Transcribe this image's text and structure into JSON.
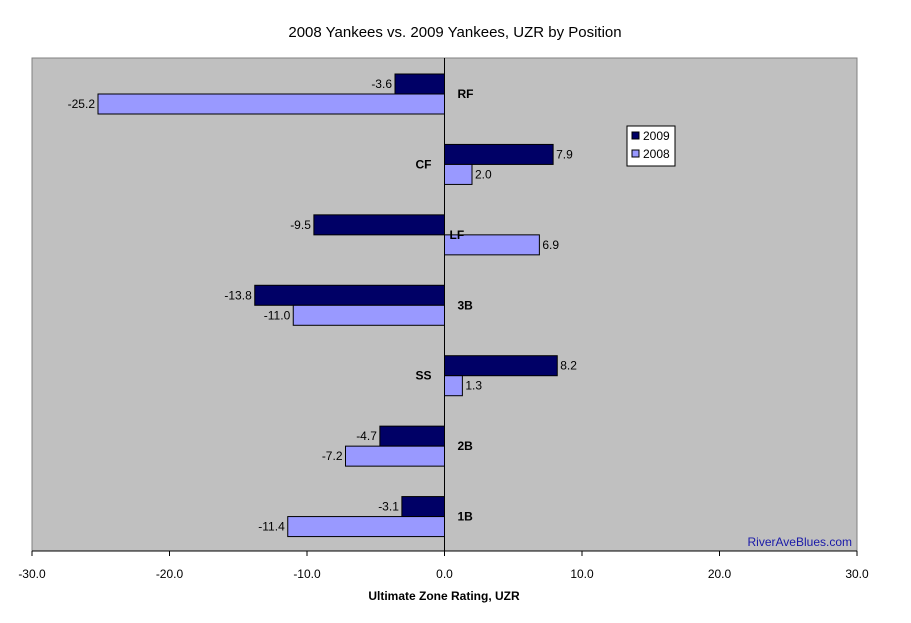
{
  "chart_data": {
    "type": "bar",
    "orientation": "horizontal",
    "title": "2008 Yankees vs. 2009 Yankees, UZR by Position",
    "xlabel": "Ultimate Zone Rating, UZR",
    "ylabel": "",
    "xlim": [
      -30,
      30
    ],
    "xticks": [
      -30,
      -20,
      -10,
      0,
      10,
      20,
      30
    ],
    "xtick_labels": [
      "-30.0",
      "-20.0",
      "-10.0",
      "0.0",
      "10.0",
      "20.0",
      "30.0"
    ],
    "grid": false,
    "plot_background": "#c0c0c0",
    "legend_position": "right",
    "categories": [
      "RF",
      "CF",
      "LF",
      "3B",
      "SS",
      "2B",
      "1B"
    ],
    "series": [
      {
        "name": "2009",
        "color": "#000066",
        "values": [
          -3.6,
          7.9,
          -9.5,
          -13.8,
          8.2,
          -4.7,
          -3.1
        ],
        "labels": [
          "-3.6",
          "7.9",
          "-9.5",
          "-13.8",
          "8.2",
          "-4.7",
          "-3.1"
        ]
      },
      {
        "name": "2008",
        "color": "#9999ff",
        "values": [
          -25.2,
          2.0,
          6.9,
          -11.0,
          1.3,
          -7.2,
          -11.4
        ],
        "labels": [
          "-25.2",
          "2.0",
          "6.9",
          "-11.0",
          "1.3",
          "-7.2",
          "-11.4"
        ]
      }
    ],
    "watermark": "RiverAveBlues.com"
  }
}
